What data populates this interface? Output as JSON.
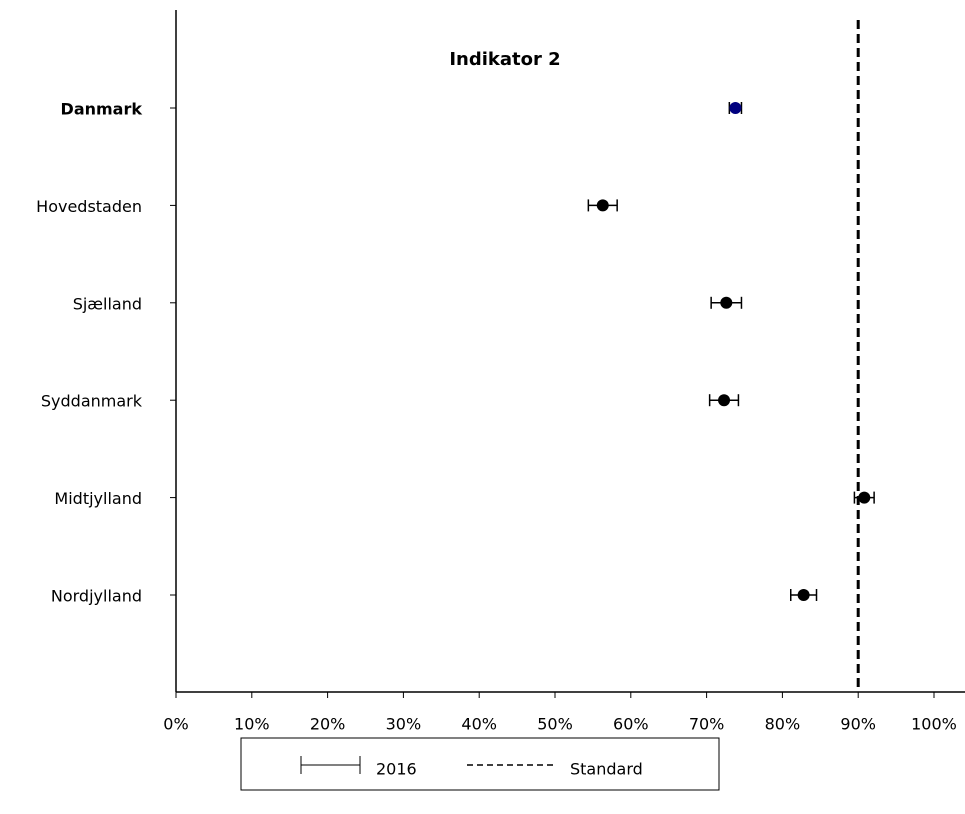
{
  "chart_data": {
    "type": "dot-errorbar",
    "title": "Indikator 2",
    "categories": [
      "Danmark",
      "Hovedstaden",
      "Sjælland",
      "Syddanmark",
      "Midtjylland",
      "Nordjylland"
    ],
    "series": [
      {
        "name": "2016",
        "color": "#000000",
        "point_colors": [
          "#00007f",
          "#000000",
          "#000000",
          "#000000",
          "#000000",
          "#000000"
        ],
        "values": [
          73.8,
          56.3,
          72.6,
          72.3,
          90.8,
          82.8
        ],
        "errors": [
          0.8,
          1.9,
          2.0,
          1.9,
          1.3,
          1.7
        ]
      }
    ],
    "reference_line": {
      "name": "Standard",
      "value": 90,
      "color": "#000000"
    },
    "xlim": [
      0,
      100
    ],
    "xticks": [
      {
        "value": 0,
        "label": "0%"
      },
      {
        "value": 10,
        "label": "10%"
      },
      {
        "value": 20,
        "label": "20%"
      },
      {
        "value": 30,
        "label": "30%"
      },
      {
        "value": 40,
        "label": "40%"
      },
      {
        "value": 50,
        "label": "50%"
      },
      {
        "value": 60,
        "label": "60%"
      },
      {
        "value": 70,
        "label": "70%"
      },
      {
        "value": 80,
        "label": "80%"
      },
      {
        "value": 90,
        "label": "90%"
      },
      {
        "value": 100,
        "label": "100%"
      }
    ],
    "legend": "bottom"
  }
}
